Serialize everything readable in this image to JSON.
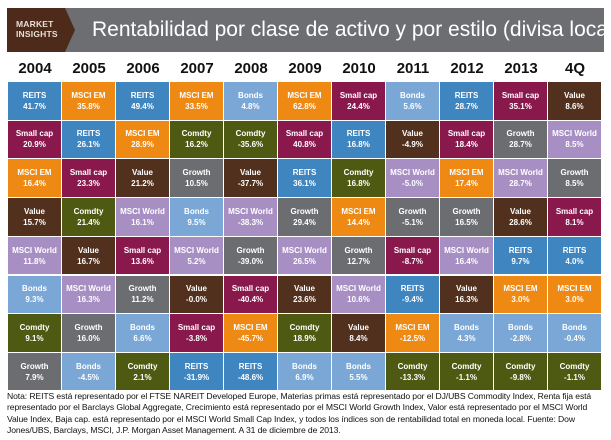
{
  "header": {
    "logo_line1": "MARKET",
    "logo_line2": "INSIGHTS",
    "title": "Rentabilidad por clase de activo y por estilo (divisa local)"
  },
  "chart_data": {
    "type": "table",
    "title": "Rentabilidad por clase de activo y por estilo (divisa local)",
    "colors": {
      "REITS": "#3f86c1",
      "MSCI EM": "#ee8a14",
      "Small cap": "#89184d",
      "Comdty": "#4e5a12",
      "Value": "#52301e",
      "Growth": "#6c6d70",
      "MSCI World": "#a78fc3",
      "Bonds": "#7aa7d5"
    },
    "columns": [
      {
        "year": "2004",
        "cells": [
          {
            "label": "REITS",
            "value": "41.7%"
          },
          {
            "label": "Small cap",
            "value": "20.9%"
          },
          {
            "label": "MSCI EM",
            "value": "16.4%"
          },
          {
            "label": "Value",
            "value": "15.7%"
          },
          {
            "label": "MSCI World",
            "value": "11.8%"
          },
          {
            "label": "Bonds",
            "value": "9.3%"
          },
          {
            "label": "Comdty",
            "value": "9.1%"
          },
          {
            "label": "Growth",
            "value": "7.9%"
          }
        ]
      },
      {
        "year": "2005",
        "cells": [
          {
            "label": "MSCI EM",
            "value": "35.8%"
          },
          {
            "label": "REITS",
            "value": "26.1%"
          },
          {
            "label": "Small cap",
            "value": "23.3%"
          },
          {
            "label": "Comdty",
            "value": "21.4%"
          },
          {
            "label": "Value",
            "value": "16.7%"
          },
          {
            "label": "MSCI World",
            "value": "16.3%"
          },
          {
            "label": "Growth",
            "value": "16.0%"
          },
          {
            "label": "Bonds",
            "value": "-4.5%"
          }
        ]
      },
      {
        "year": "2006",
        "cells": [
          {
            "label": "REITS",
            "value": "49.4%"
          },
          {
            "label": "MSCI EM",
            "value": "28.9%"
          },
          {
            "label": "Value",
            "value": "21.2%"
          },
          {
            "label": "MSCI World",
            "value": "16.1%"
          },
          {
            "label": "Small cap",
            "value": "13.6%"
          },
          {
            "label": "Growth",
            "value": "11.2%"
          },
          {
            "label": "Bonds",
            "value": "6.6%"
          },
          {
            "label": "Comdty",
            "value": "2.1%"
          }
        ]
      },
      {
        "year": "2007",
        "cells": [
          {
            "label": "MSCI EM",
            "value": "33.5%"
          },
          {
            "label": "Comdty",
            "value": "16.2%"
          },
          {
            "label": "Growth",
            "value": "10.5%"
          },
          {
            "label": "Bonds",
            "value": "9.5%"
          },
          {
            "label": "MSCI World",
            "value": "5.2%"
          },
          {
            "label": "Value",
            "value": "-0.0%"
          },
          {
            "label": "Small cap",
            "value": "-3.8%"
          },
          {
            "label": "REITS",
            "value": "-31.9%"
          }
        ]
      },
      {
        "year": "2008",
        "cells": [
          {
            "label": "Bonds",
            "value": "4.8%"
          },
          {
            "label": "Comdty",
            "value": "-35.6%"
          },
          {
            "label": "Value",
            "value": "-37.7%"
          },
          {
            "label": "MSCI World",
            "value": "-38.3%"
          },
          {
            "label": "Growth",
            "value": "-39.0%"
          },
          {
            "label": "Small cap",
            "value": "-40.4%"
          },
          {
            "label": "MSCI EM",
            "value": "-45.7%"
          },
          {
            "label": "REITS",
            "value": "-48.6%"
          }
        ]
      },
      {
        "year": "2009",
        "cells": [
          {
            "label": "MSCI EM",
            "value": "62.8%"
          },
          {
            "label": "Small cap",
            "value": "40.8%"
          },
          {
            "label": "REITS",
            "value": "36.1%"
          },
          {
            "label": "Growth",
            "value": "29.4%"
          },
          {
            "label": "MSCI World",
            "value": "26.5%"
          },
          {
            "label": "Value",
            "value": "23.6%"
          },
          {
            "label": "Comdty",
            "value": "18.9%"
          },
          {
            "label": "Bonds",
            "value": "6.9%"
          }
        ]
      },
      {
        "year": "2010",
        "cells": [
          {
            "label": "Small cap",
            "value": "24.4%"
          },
          {
            "label": "REITS",
            "value": "16.8%"
          },
          {
            "label": "Comdty",
            "value": "16.8%"
          },
          {
            "label": "MSCI EM",
            "value": "14.4%"
          },
          {
            "label": "Growth",
            "value": "12.7%"
          },
          {
            "label": "MSCI World",
            "value": "10.6%"
          },
          {
            "label": "Value",
            "value": "8.4%"
          },
          {
            "label": "Bonds",
            "value": "5.5%"
          }
        ]
      },
      {
        "year": "2011",
        "cells": [
          {
            "label": "Bonds",
            "value": "5.6%"
          },
          {
            "label": "Value",
            "value": "-4.9%"
          },
          {
            "label": "MSCI World",
            "value": "-5.0%"
          },
          {
            "label": "Growth",
            "value": "-5.1%"
          },
          {
            "label": "Small cap",
            "value": "-8.7%"
          },
          {
            "label": "REITS",
            "value": "-9.4%"
          },
          {
            "label": "MSCI EM",
            "value": "-12.5%"
          },
          {
            "label": "Comdty",
            "value": "-13.3%"
          }
        ]
      },
      {
        "year": "2012",
        "cells": [
          {
            "label": "REITS",
            "value": "28.7%"
          },
          {
            "label": "Small cap",
            "value": "18.4%"
          },
          {
            "label": "MSCI EM",
            "value": "17.4%"
          },
          {
            "label": "Growth",
            "value": "16.5%"
          },
          {
            "label": "MSCI World",
            "value": "16.4%"
          },
          {
            "label": "Value",
            "value": "16.3%"
          },
          {
            "label": "Bonds",
            "value": "4.3%"
          },
          {
            "label": "Comdty",
            "value": "-1.1%"
          }
        ]
      },
      {
        "year": "2013",
        "cells": [
          {
            "label": "Small cap",
            "value": "35.1%"
          },
          {
            "label": "Growth",
            "value": "28.7%"
          },
          {
            "label": "MSCI World",
            "value": "28.7%"
          },
          {
            "label": "Value",
            "value": "28.6%"
          },
          {
            "label": "REITS",
            "value": "9.7%"
          },
          {
            "label": "MSCI EM",
            "value": "3.0%"
          },
          {
            "label": "Bonds",
            "value": "-2.8%"
          },
          {
            "label": "Comdty",
            "value": "-9.8%"
          }
        ]
      },
      {
        "year": "4Q",
        "cells": [
          {
            "label": "Value",
            "value": "8.6%"
          },
          {
            "label": "MSCI World",
            "value": "8.5%"
          },
          {
            "label": "Growth",
            "value": "8.5%"
          },
          {
            "label": "Small cap",
            "value": "8.1%"
          },
          {
            "label": "REITS",
            "value": "4.0%"
          },
          {
            "label": "MSCI EM",
            "value": "3.0%"
          },
          {
            "label": "Bonds",
            "value": "-0.4%"
          },
          {
            "label": "Comdty",
            "value": "-1.1%"
          }
        ]
      }
    ]
  },
  "footnote": "Nota: REITS está representado por el FTSE NAREIT Developed Europe, Materias primas está representado por el DJ/UBS Commodity Index, Renta fija está representado por el Barclays Global Aggregate, Crecimiento está representado por el MSCI World Growth Index, Valor está representado por el MSCI World Value Index, Baja cap. está representado por el MSCI World Small Cap Index, y todos los índices son de rentabilidad total en moneda local.  Fuente: Dow Jones/UBS, Barclays, MSCI, J.P. Morgan Asset Management. A 31 de diciembre de 2013."
}
